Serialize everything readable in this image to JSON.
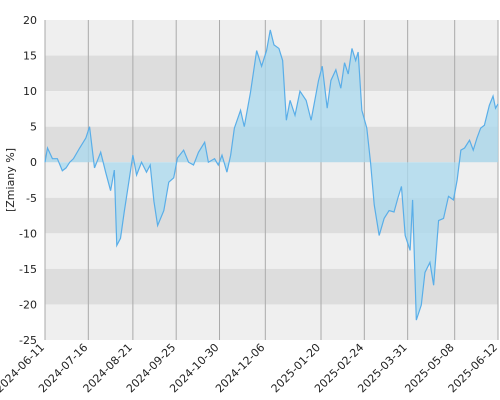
{
  "chart_data": {
    "type": "line",
    "y_label": "[Zmiany %]",
    "color": "#5aaee8",
    "area_color": "#a8d8ee",
    "grid": true,
    "xlim": [
      "2024-06-11",
      "2025-06-12"
    ],
    "xticks": [
      "2024-06-11",
      "2024-07-16",
      "2024-08-21",
      "2024-09-25",
      "2024-10-30",
      "2024-12-06",
      "2025-01-20",
      "2025-02-24",
      "2025-03-31",
      "2025-05-08",
      "2025-06-12"
    ],
    "ylim": [
      -25,
      20
    ],
    "yticks": [
      -25,
      -20,
      -15,
      -10,
      -5,
      0,
      5,
      10,
      15,
      20
    ],
    "x": [
      "2024-06-11",
      "2024-06-13",
      "2024-06-17",
      "2024-06-21",
      "2024-06-25",
      "2024-06-28",
      "2024-07-01",
      "2024-07-04",
      "2024-07-09",
      "2024-07-14",
      "2024-07-17",
      "2024-07-21",
      "2024-07-26",
      "2024-07-30",
      "2024-08-03",
      "2024-08-06",
      "2024-08-08",
      "2024-08-11",
      "2024-08-14",
      "2024-08-17",
      "2024-08-21",
      "2024-08-24",
      "2024-08-28",
      "2024-09-01",
      "2024-09-04",
      "2024-09-07",
      "2024-09-10",
      "2024-09-15",
      "2024-09-19",
      "2024-09-23",
      "2024-09-26",
      "2024-10-01",
      "2024-10-05",
      "2024-10-09",
      "2024-10-13",
      "2024-10-18",
      "2024-10-21",
      "2024-10-26",
      "2024-10-29",
      "2024-11-01",
      "2024-11-05",
      "2024-11-08",
      "2024-11-11",
      "2024-11-16",
      "2024-11-19",
      "2024-11-24",
      "2024-11-29",
      "2024-12-03",
      "2024-12-07",
      "2024-12-10",
      "2024-12-13",
      "2024-12-17",
      "2024-12-20",
      "2024-12-23",
      "2024-12-26",
      "2024-12-30",
      "2025-01-03",
      "2025-01-08",
      "2025-01-12",
      "2025-01-15",
      "2025-01-18",
      "2025-01-21",
      "2025-01-25",
      "2025-01-28",
      "2025-02-01",
      "2025-02-05",
      "2025-02-08",
      "2025-02-11",
      "2025-02-14",
      "2025-02-17",
      "2025-02-19",
      "2025-02-22",
      "2025-02-26",
      "2025-03-01",
      "2025-03-04",
      "2025-03-08",
      "2025-03-12",
      "2025-03-16",
      "2025-03-20",
      "2025-03-23",
      "2025-03-26",
      "2025-03-29",
      "2025-04-02",
      "2025-04-04",
      "2025-04-07",
      "2025-04-11",
      "2025-04-14",
      "2025-04-18",
      "2025-04-21",
      "2025-04-25",
      "2025-04-29",
      "2025-05-03",
      "2025-05-07",
      "2025-05-10",
      "2025-05-13",
      "2025-05-16",
      "2025-05-20",
      "2025-05-23",
      "2025-05-26",
      "2025-05-29",
      "2025-06-01",
      "2025-06-05",
      "2025-06-08",
      "2025-06-10",
      "2025-06-12"
    ],
    "values": [
      0,
      2,
      0.5,
      0.5,
      -1.2,
      -0.8,
      0,
      0.5,
      2,
      3.4,
      5,
      -0.8,
      1.4,
      -1.4,
      -4,
      -1.1,
      -11.7,
      -10.7,
      -7,
      -3.6,
      1,
      -1.8,
      0,
      -1.4,
      -0.4,
      -5.5,
      -8.9,
      -6.8,
      -2.8,
      -2.2,
      0.6,
      1.7,
      0,
      -0.4,
      1.4,
      2.8,
      0,
      0.5,
      -0.4,
      1,
      -1.4,
      1,
      4.8,
      7.3,
      5,
      9.8,
      15.7,
      13.5,
      15.7,
      18.6,
      16.5,
      16,
      14.3,
      5.9,
      8.7,
      6.6,
      10,
      8.7,
      5.9,
      8.7,
      11.5,
      13.5,
      7.6,
      11.5,
      13,
      10.4,
      14,
      12.4,
      16,
      14.3,
      15.5,
      7.3,
      4.8,
      0,
      -6,
      -10.3,
      -7.9,
      -6.8,
      -7,
      -5.1,
      -3.4,
      -10.3,
      -12.4,
      -5.3,
      -22.2,
      -20.1,
      -15.5,
      -14.1,
      -17.3,
      -8.2,
      -7.9,
      -4.8,
      -5.3,
      -2.5,
      1.7,
      2,
      3.1,
      1.7,
      3.4,
      4.8,
      5.2,
      8,
      9.3,
      7.6,
      8.2
    ]
  }
}
